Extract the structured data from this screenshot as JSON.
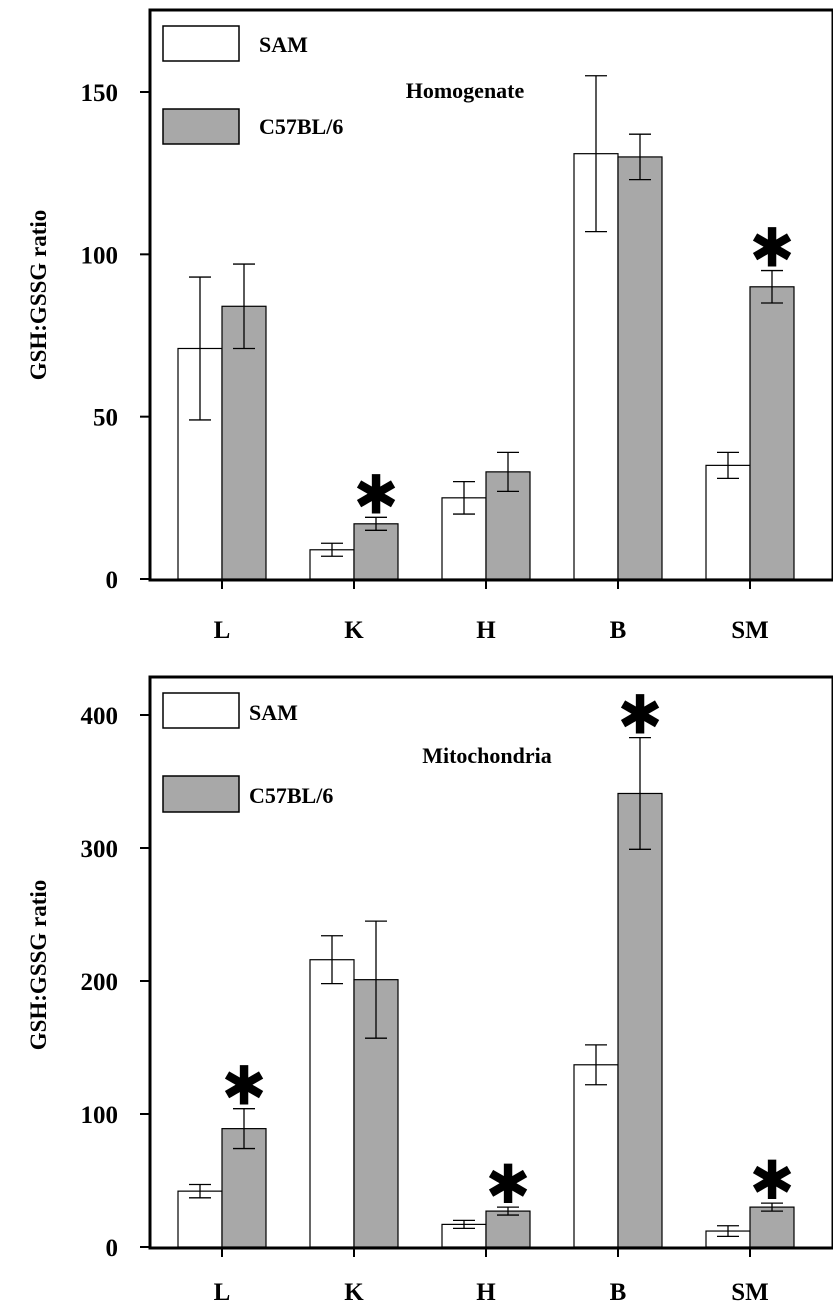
{
  "colors": {
    "SAM": "#ffffff",
    "C57BL/6": "#a8a8a8",
    "axis": "#000000"
  },
  "chart_data": [
    {
      "type": "bar",
      "title": "Homogenate",
      "ylabel": "GSH:GSSG ratio",
      "xlabel": "",
      "categories": [
        "L",
        "K",
        "H",
        "B",
        "SM"
      ],
      "ylim": [
        0,
        175
      ],
      "yticks": [
        0,
        50,
        100,
        150
      ],
      "legend": {
        "position": "top-left",
        "entries": [
          "SAM",
          "C57BL/6"
        ]
      },
      "significance_marker": "✱",
      "series": [
        {
          "name": "SAM",
          "values": [
            71,
            9,
            25,
            131,
            35
          ],
          "errors": [
            22,
            2,
            5,
            24,
            4
          ],
          "significant": [
            false,
            false,
            false,
            false,
            false
          ]
        },
        {
          "name": "C57BL/6",
          "values": [
            84,
            17,
            33,
            130,
            90
          ],
          "errors": [
            13,
            2,
            6,
            7,
            5
          ],
          "significant": [
            false,
            true,
            false,
            false,
            true
          ]
        }
      ]
    },
    {
      "type": "bar",
      "title": "Mitochondria",
      "ylabel": "GSH:GSSG ratio",
      "xlabel": "",
      "categories": [
        "L",
        "K",
        "H",
        "B",
        "SM"
      ],
      "ylim": [
        0,
        430
      ],
      "yticks": [
        0,
        100,
        200,
        300,
        400
      ],
      "legend": {
        "position": "top-left",
        "entries": [
          "SAM",
          "C57BL/6"
        ]
      },
      "significance_marker": "✱",
      "series": [
        {
          "name": "SAM",
          "values": [
            42,
            216,
            17,
            137,
            12
          ],
          "errors": [
            5,
            18,
            3,
            15,
            4
          ],
          "significant": [
            false,
            false,
            false,
            false,
            false
          ]
        },
        {
          "name": "C57BL/6",
          "values": [
            89,
            201,
            27,
            341,
            30
          ],
          "errors": [
            15,
            44,
            3,
            42,
            3
          ],
          "significant": [
            true,
            false,
            true,
            true,
            true
          ]
        }
      ]
    }
  ]
}
